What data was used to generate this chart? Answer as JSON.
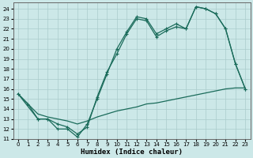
{
  "xlabel": "Humidex (Indice chaleur)",
  "bg_color": "#cce8e8",
  "grid_color": "#aacccc",
  "line_color": "#1a6b5a",
  "xlim": [
    -0.5,
    23.5
  ],
  "ylim": [
    11,
    24.6
  ],
  "yticks": [
    11,
    12,
    13,
    14,
    15,
    16,
    17,
    18,
    19,
    20,
    21,
    22,
    23,
    24
  ],
  "xticks": [
    0,
    1,
    2,
    3,
    4,
    5,
    6,
    7,
    8,
    9,
    10,
    11,
    12,
    13,
    14,
    15,
    16,
    17,
    18,
    19,
    20,
    21,
    22,
    23
  ],
  "line1_x": [
    0,
    1,
    2,
    3,
    4,
    5,
    6,
    7,
    8,
    9,
    10,
    11,
    12,
    13,
    14,
    15,
    16,
    17,
    18,
    19,
    20,
    21,
    22,
    23
  ],
  "line1_y": [
    15.5,
    14.5,
    13.0,
    13.0,
    12.0,
    12.0,
    11.2,
    12.5,
    15.0,
    17.5,
    20.0,
    21.7,
    23.2,
    23.0,
    21.5,
    22.0,
    22.5,
    22.0,
    24.2,
    24.0,
    23.5,
    22.0,
    18.5,
    16.0
  ],
  "line2_x": [
    0,
    2,
    3,
    4,
    5,
    6,
    7,
    8,
    9,
    10,
    11,
    12,
    13,
    14,
    15,
    16,
    17,
    18,
    19,
    20,
    21,
    22,
    23
  ],
  "line2_y": [
    15.5,
    13.0,
    13.0,
    12.5,
    12.2,
    11.5,
    12.2,
    15.2,
    17.7,
    19.5,
    21.5,
    23.0,
    22.8,
    21.2,
    21.8,
    22.2,
    22.0,
    24.2,
    24.0,
    23.5,
    22.0,
    18.5,
    16.0
  ],
  "line3_x": [
    0,
    1,
    2,
    3,
    4,
    5,
    6,
    7,
    8,
    9,
    10,
    11,
    12,
    13,
    14,
    15,
    16,
    17,
    18,
    19,
    20,
    21,
    22,
    23
  ],
  "line3_y": [
    15.5,
    14.5,
    13.5,
    13.2,
    13.0,
    12.8,
    12.5,
    12.8,
    13.2,
    13.5,
    13.8,
    14.0,
    14.2,
    14.5,
    14.6,
    14.8,
    15.0,
    15.2,
    15.4,
    15.6,
    15.8,
    16.0,
    16.1,
    16.1
  ]
}
